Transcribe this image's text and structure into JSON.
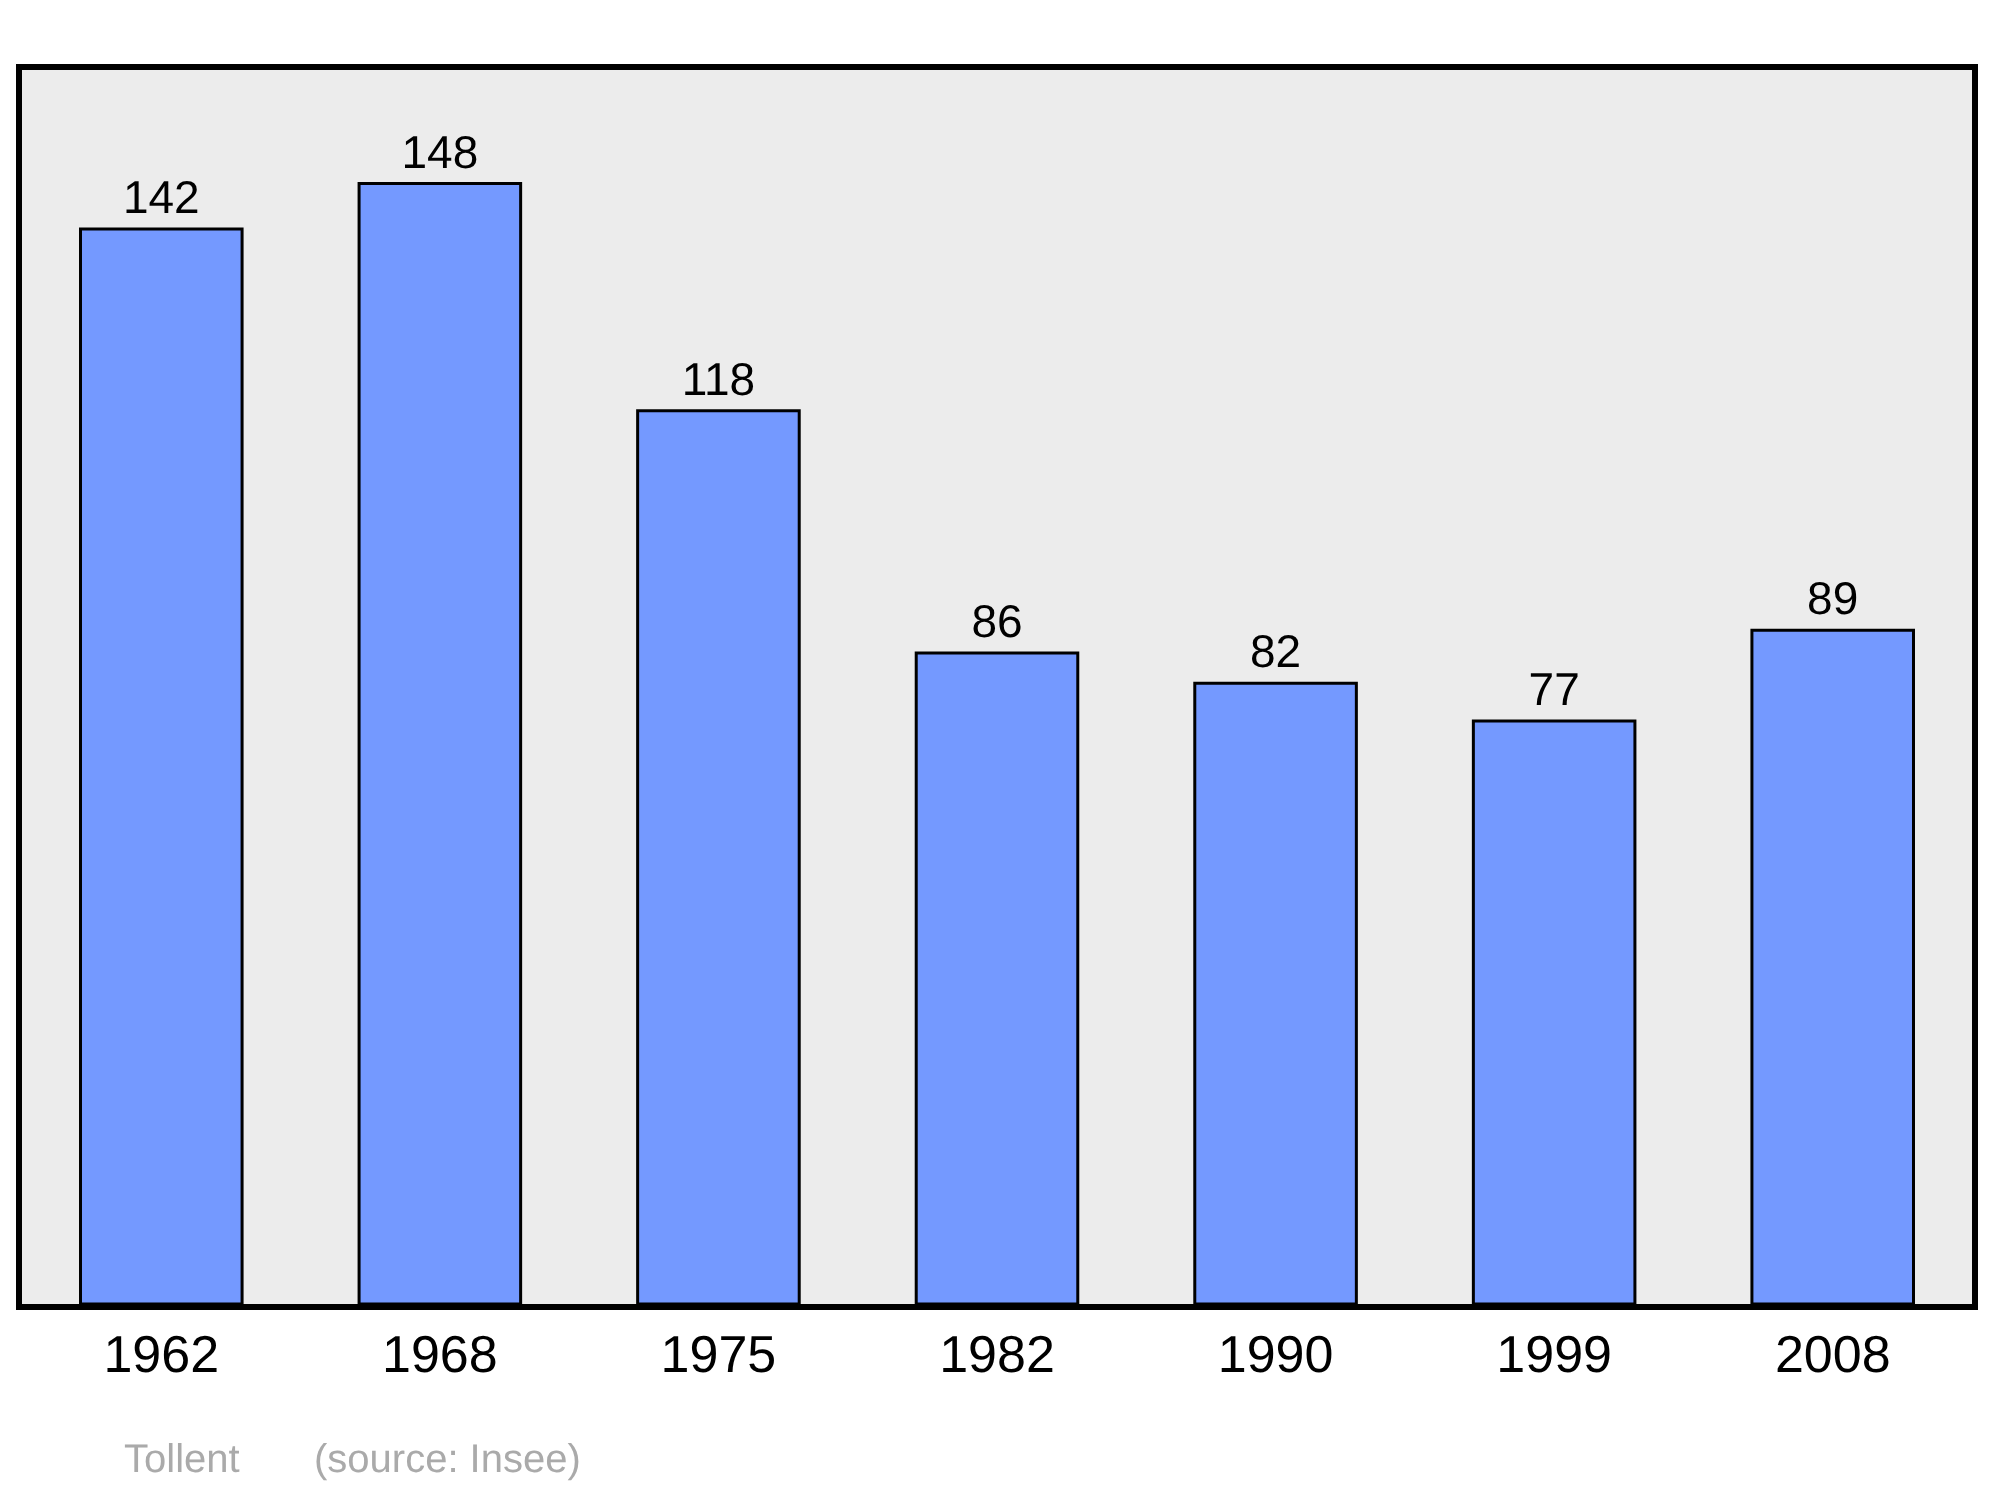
{
  "chart_data": {
    "type": "bar",
    "categories": [
      "1962",
      "1968",
      "1975",
      "1982",
      "1990",
      "1999",
      "2008"
    ],
    "values": [
      142,
      148,
      118,
      86,
      82,
      77,
      89
    ],
    "color": "#7499ff",
    "ylim": [
      0,
      163
    ],
    "data_labels": true,
    "grid": false,
    "legend": false,
    "tick_labels": "x",
    "annotations": [
      "Tollent",
      "(source: Insee)"
    ]
  }
}
